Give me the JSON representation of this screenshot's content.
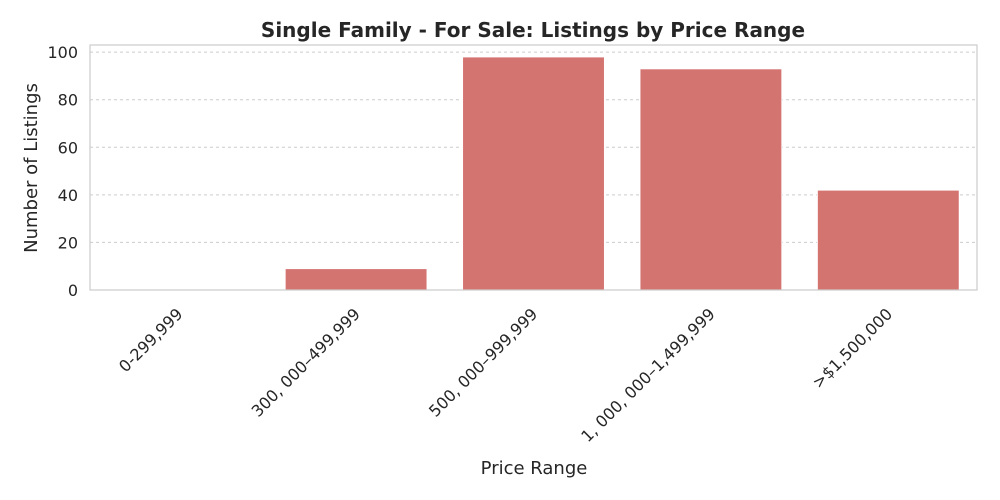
{
  "chart_data": {
    "type": "bar",
    "title": "Single Family - For Sale: Listings by Price Range",
    "xlabel": "Price Range",
    "ylabel": "Number of Listings",
    "categories": [
      "0-299,999",
      "300, 000–499,999",
      "500, 000–999,999",
      "1, 000, 000–1,499,999",
      ">$1,500,000"
    ],
    "values": [
      0,
      9,
      98,
      93,
      42
    ],
    "ylim": [
      0,
      103
    ],
    "yticks": [
      0,
      20,
      40,
      60,
      80,
      100
    ],
    "grid": true,
    "bar_color": "#d47471"
  }
}
